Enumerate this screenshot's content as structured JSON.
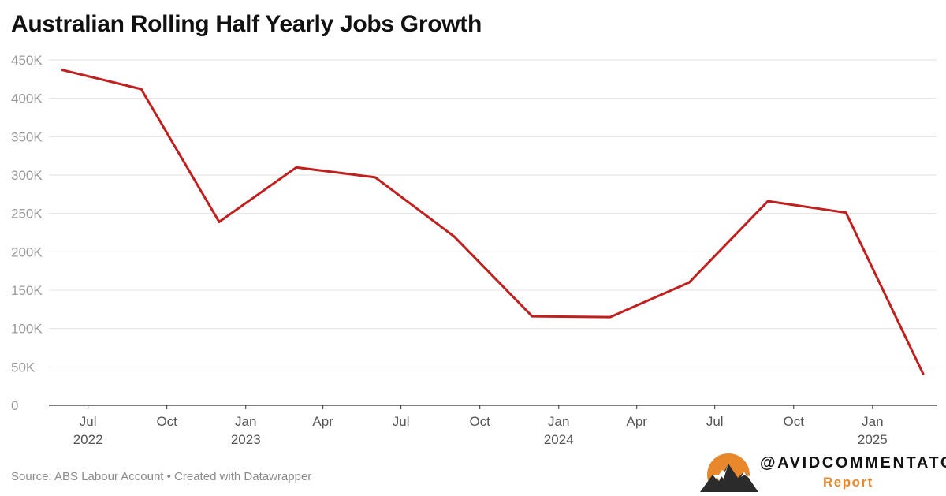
{
  "title": "Australian Rolling Half Yearly Jobs Growth",
  "source": "Source: ABS Labour Account • Created with Datawrapper",
  "brand": {
    "handle": "@AVIDCOMMENTATOR",
    "subtitle": "Report",
    "logo_icon": "sun-over-mountains-icon"
  },
  "colors": {
    "line": "#c0201e",
    "gridline": "#e2e2e2",
    "axis": "#333333",
    "brand_orange": "#e8872c"
  },
  "chart_data": {
    "type": "line",
    "title": "Australian Rolling Half Yearly Jobs Growth",
    "xlabel": "",
    "ylabel": "",
    "ylim": [
      0,
      450000
    ],
    "yticks": [
      {
        "value": 0,
        "label": "0"
      },
      {
        "value": 50000,
        "label": "50K"
      },
      {
        "value": 100000,
        "label": "100K"
      },
      {
        "value": 150000,
        "label": "150K"
      },
      {
        "value": 200000,
        "label": "200K"
      },
      {
        "value": 250000,
        "label": "250K"
      },
      {
        "value": 300000,
        "label": "300K"
      },
      {
        "value": 350000,
        "label": "350K"
      },
      {
        "value": 400000,
        "label": "400K"
      },
      {
        "value": 450000,
        "label": "450K"
      }
    ],
    "xlim": [
      "2022-06-01",
      "2025-03-01"
    ],
    "xticks": [
      {
        "date": "2022-07-01",
        "label": "Jul",
        "year": "2022"
      },
      {
        "date": "2022-10-01",
        "label": "Oct",
        "year": ""
      },
      {
        "date": "2023-01-01",
        "label": "Jan",
        "year": "2023"
      },
      {
        "date": "2023-04-01",
        "label": "Apr",
        "year": ""
      },
      {
        "date": "2023-07-01",
        "label": "Jul",
        "year": ""
      },
      {
        "date": "2023-10-01",
        "label": "Oct",
        "year": ""
      },
      {
        "date": "2024-01-01",
        "label": "Jan",
        "year": "2024"
      },
      {
        "date": "2024-04-01",
        "label": "Apr",
        "year": ""
      },
      {
        "date": "2024-07-01",
        "label": "Jul",
        "year": ""
      },
      {
        "date": "2024-10-01",
        "label": "Oct",
        "year": ""
      },
      {
        "date": "2025-01-01",
        "label": "Jan",
        "year": "2025"
      }
    ],
    "grid": true,
    "series": [
      {
        "points": [
          {
            "x": "2022-06-01",
            "y": 437000
          },
          {
            "x": "2022-09-01",
            "y": 412000
          },
          {
            "x": "2022-12-01",
            "y": 239000
          },
          {
            "x": "2023-03-01",
            "y": 310000
          },
          {
            "x": "2023-06-01",
            "y": 297000
          },
          {
            "x": "2023-09-01",
            "y": 220000
          },
          {
            "x": "2023-12-01",
            "y": 116000
          },
          {
            "x": "2024-03-01",
            "y": 115000
          },
          {
            "x": "2024-06-01",
            "y": 160000
          },
          {
            "x": "2024-09-01",
            "y": 266000
          },
          {
            "x": "2024-12-01",
            "y": 251000
          },
          {
            "x": "2025-03-01",
            "y": 41000
          }
        ]
      }
    ]
  }
}
